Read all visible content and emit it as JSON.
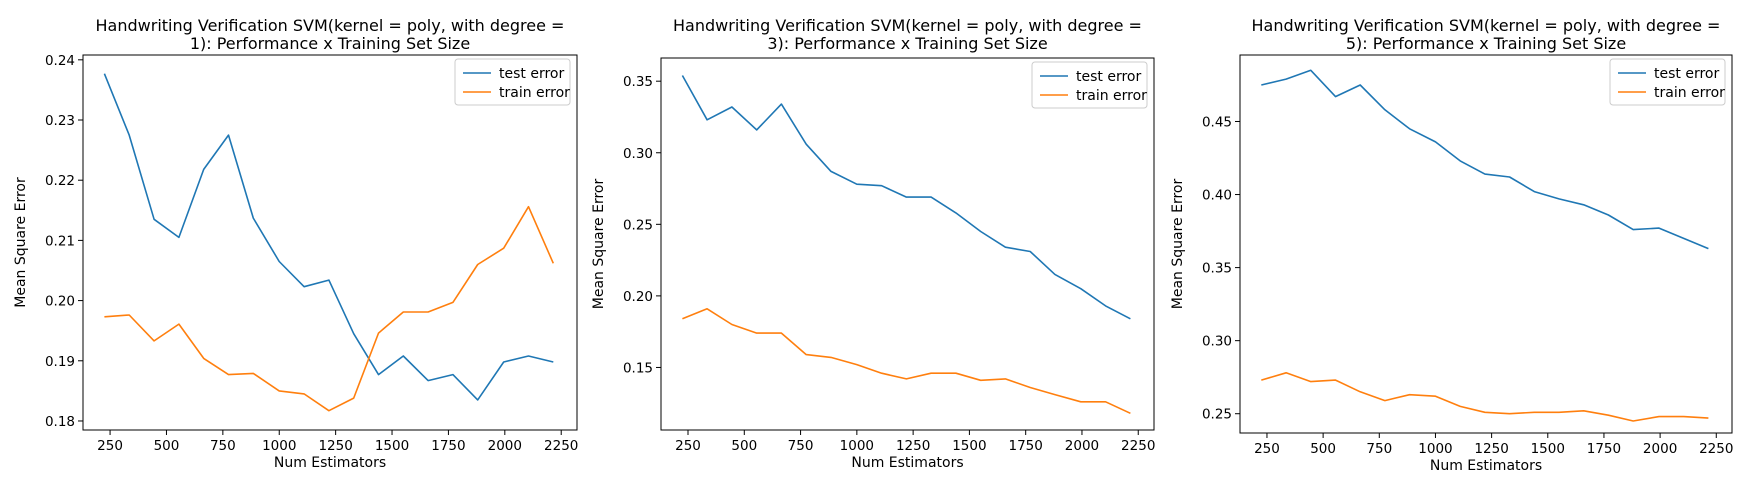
{
  "chart_data": [
    {
      "type": "line",
      "title": "Handwriting Verification SVM(kernel = poly, with degree = 1): Performance x Training Set Size",
      "title_lines": [
        "Handwriting Verification SVM(kernel = poly, with degree =",
        "1): Performance x Training Set Size"
      ],
      "xlabel": "Num Estimators",
      "ylabel": "Mean Square Error",
      "xlim": [
        130,
        2320
      ],
      "ylim": [
        0.1785,
        0.2408
      ],
      "xticks": [
        250,
        500,
        750,
        1000,
        1250,
        1500,
        1750,
        2000,
        2250
      ],
      "xtick_labels": [
        "250",
        "500",
        "750",
        "1000",
        "1250",
        "1500",
        "1750",
        "2000",
        "2250"
      ],
      "yticks": [
        0.18,
        0.19,
        0.2,
        0.21,
        0.22,
        0.23,
        0.24
      ],
      "ytick_labels": [
        "0.18",
        "0.19",
        "0.20",
        "0.21",
        "0.22",
        "0.23",
        "0.24"
      ],
      "legend_position": "top-right",
      "x": [
        225,
        335,
        445,
        555,
        665,
        775,
        885,
        1000,
        1110,
        1220,
        1330,
        1440,
        1550,
        1660,
        1770,
        1880,
        1995,
        2105,
        2215
      ],
      "series": [
        {
          "name": "test error",
          "color": "#1f77b4",
          "values": [
            0.2377,
            0.2275,
            0.2135,
            0.2105,
            0.2218,
            0.2275,
            0.2137,
            0.2065,
            0.2023,
            0.2034,
            0.1945,
            0.1877,
            0.1908,
            0.1867,
            0.1877,
            0.1835,
            0.1898,
            0.1908,
            0.1898
          ]
        },
        {
          "name": "train error",
          "color": "#ff7f0e",
          "values": [
            0.1973,
            0.1976,
            0.1933,
            0.1961,
            0.1904,
            0.1877,
            0.1879,
            0.185,
            0.1845,
            0.1817,
            0.1838,
            0.1946,
            0.1981,
            0.1981,
            0.1997,
            0.206,
            0.2087,
            0.2156,
            0.2062
          ]
        }
      ]
    },
    {
      "type": "line",
      "title": "Handwriting Verification SVM(kernel = poly, with degree = 3): Performance x Training Set Size",
      "title_lines": [
        "Handwriting Verification SVM(kernel = poly, with degree =",
        "3): Performance x Training Set Size"
      ],
      "xlabel": "Num Estimators",
      "ylabel": "Mean Square Error",
      "xlim": [
        130,
        2320
      ],
      "ylim": [
        0.1063,
        0.3662
      ],
      "xticks": [
        250,
        500,
        750,
        1000,
        1250,
        1500,
        1750,
        2000,
        2250
      ],
      "xtick_labels": [
        "250",
        "500",
        "750",
        "1000",
        "1250",
        "1500",
        "1750",
        "2000",
        "2250"
      ],
      "yticks": [
        0.15,
        0.2,
        0.25,
        0.3,
        0.35
      ],
      "ytick_labels": [
        "0.15",
        "0.20",
        "0.25",
        "0.30",
        "0.35"
      ],
      "legend_position": "top-right",
      "x": [
        225,
        335,
        445,
        555,
        665,
        775,
        885,
        1000,
        1110,
        1220,
        1330,
        1440,
        1550,
        1660,
        1770,
        1880,
        1995,
        2105,
        2215
      ],
      "series": [
        {
          "name": "test error",
          "color": "#1f77b4",
          "values": [
            0.354,
            0.323,
            0.332,
            0.316,
            0.334,
            0.306,
            0.287,
            0.278,
            0.277,
            0.269,
            0.269,
            0.258,
            0.245,
            0.234,
            0.231,
            0.215,
            0.205,
            0.193,
            0.184
          ]
        },
        {
          "name": "train error",
          "color": "#ff7f0e",
          "values": [
            0.184,
            0.191,
            0.18,
            0.174,
            0.174,
            0.159,
            0.157,
            0.152,
            0.146,
            0.142,
            0.146,
            0.146,
            0.141,
            0.142,
            0.136,
            0.131,
            0.126,
            0.126,
            0.118
          ]
        }
      ]
    },
    {
      "type": "line",
      "title": "Handwriting Verification SVM(kernel = poly, with degree = 5): Performance x Training Set Size",
      "title_lines": [
        "Handwriting Verification SVM(kernel = poly, with degree =",
        "5): Performance x Training Set Size"
      ],
      "xlabel": "Num Estimators",
      "ylabel": "Mean Square Error",
      "xlim": [
        130,
        2320
      ],
      "ylim": [
        0.2368,
        0.4955
      ],
      "xticks": [
        250,
        500,
        750,
        1000,
        1250,
        1500,
        1750,
        2000,
        2250
      ],
      "xtick_labels": [
        "250",
        "500",
        "750",
        "1000",
        "1250",
        "1500",
        "1750",
        "2000",
        "2250"
      ],
      "yticks": [
        0.25,
        0.3,
        0.35,
        0.4,
        0.45
      ],
      "ytick_labels": [
        "0.25",
        "0.30",
        "0.35",
        "0.40",
        "0.45"
      ],
      "legend_position": "top-right",
      "x": [
        225,
        335,
        445,
        555,
        665,
        775,
        885,
        1000,
        1110,
        1220,
        1330,
        1440,
        1550,
        1660,
        1770,
        1880,
        1995,
        2105,
        2215
      ],
      "series": [
        {
          "name": "test error",
          "color": "#1f77b4",
          "values": [
            0.475,
            0.479,
            0.485,
            0.467,
            0.475,
            0.458,
            0.445,
            0.436,
            0.423,
            0.414,
            0.412,
            0.402,
            0.397,
            0.393,
            0.386,
            0.376,
            0.377,
            0.37,
            0.363
          ]
        },
        {
          "name": "train error",
          "color": "#ff7f0e",
          "values": [
            0.273,
            0.278,
            0.272,
            0.273,
            0.265,
            0.259,
            0.263,
            0.262,
            0.255,
            0.251,
            0.25,
            0.251,
            0.251,
            0.252,
            0.249,
            0.245,
            0.248,
            0.248,
            0.247
          ]
        }
      ]
    }
  ]
}
